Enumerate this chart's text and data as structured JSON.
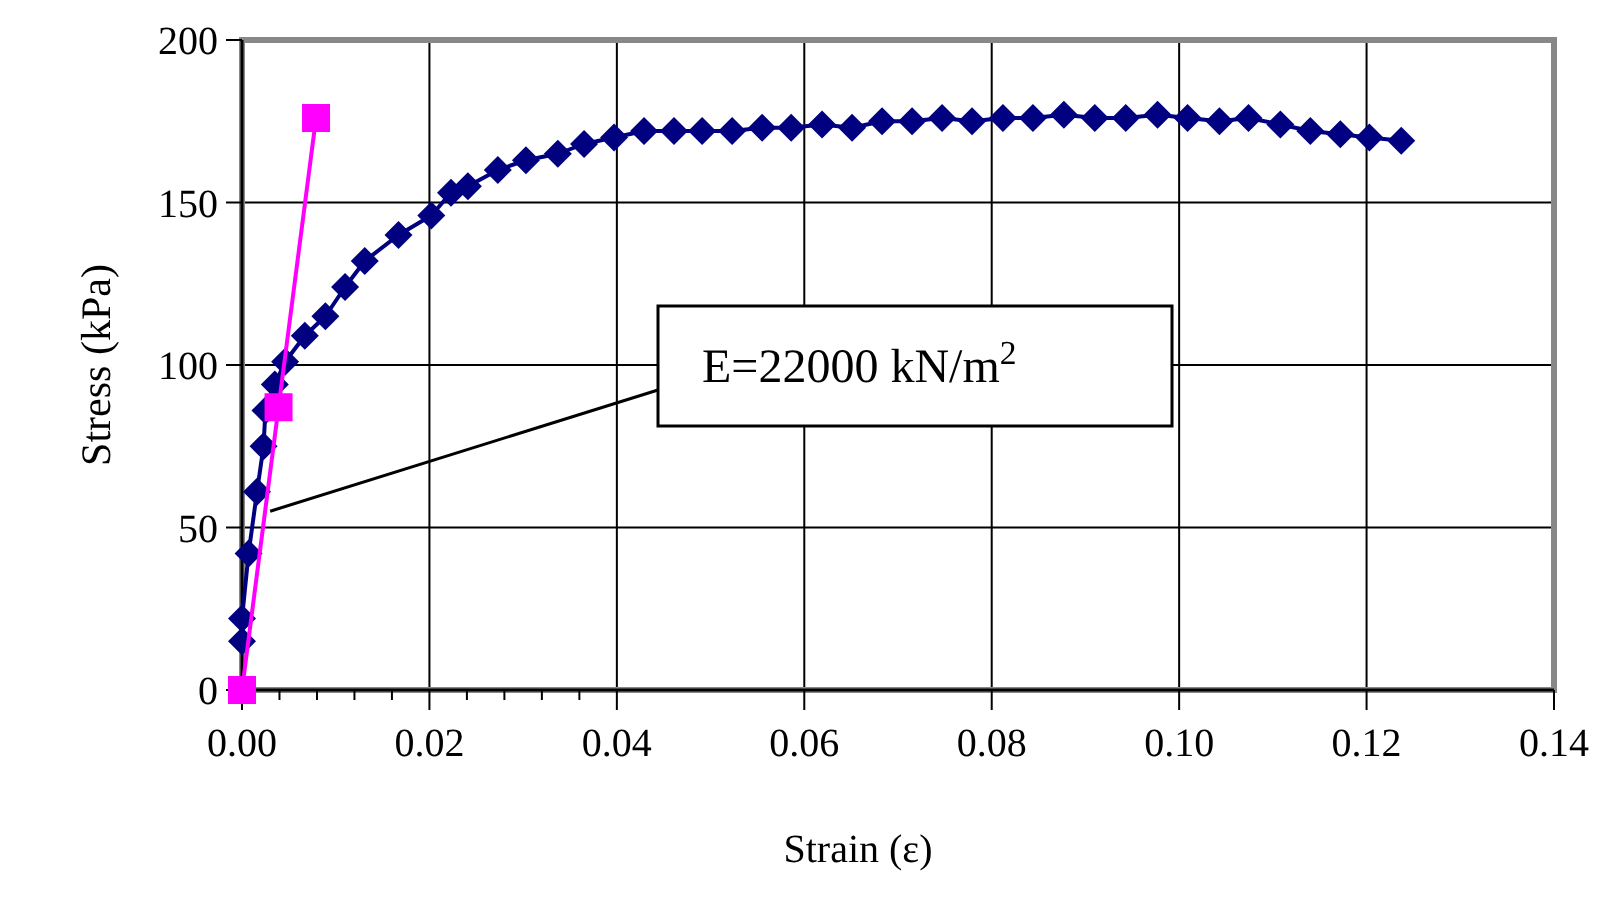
{
  "chart_data": {
    "type": "line",
    "xlabel": "Strain (ε)",
    "ylabel": "Stress (kPa)",
    "xlim": [
      0,
      0.14
    ],
    "ylim": [
      0,
      200
    ],
    "xticks": [
      {
        "value": 0,
        "label": "0.00"
      },
      {
        "value": 0.004,
        "label": null
      },
      {
        "value": 0.008,
        "label": null
      },
      {
        "value": 0.012,
        "label": null
      },
      {
        "value": 0.016,
        "label": null
      },
      {
        "value": 0.02,
        "label": "0.02"
      },
      {
        "value": 0.024,
        "label": null
      },
      {
        "value": 0.028,
        "label": null
      },
      {
        "value": 0.032,
        "label": null
      },
      {
        "value": 0.036,
        "label": null
      },
      {
        "value": 0.04,
        "label": "0.04"
      },
      {
        "value": 0.06,
        "label": "0.06"
      },
      {
        "value": 0.08,
        "label": "0.08"
      },
      {
        "value": 0.1,
        "label": "0.10"
      },
      {
        "value": 0.12,
        "label": "0.12"
      },
      {
        "value": 0.14,
        "label": "0.14"
      }
    ],
    "yticks": [
      0,
      50,
      100,
      150,
      200
    ],
    "grid": true,
    "line_style": "solid",
    "annotations": [
      {
        "text": "E=22000 kN/m$^{2}$",
        "x": 0.003,
        "y": 55
      }
    ],
    "series": [
      {
        "color": "#000080",
        "marker": "diamond",
        "x": [
          0,
          0,
          0.0007,
          0.0016,
          0.0023,
          0.0025,
          0.0035,
          0.0046,
          0.0067,
          0.0089,
          0.011,
          0.0131,
          0.0167,
          0.0202,
          0.0223,
          0.0241,
          0.0273,
          0.0303,
          0.0337,
          0.0365,
          0.0397,
          0.0429,
          0.0461,
          0.0491,
          0.0523,
          0.0555,
          0.0586,
          0.0619,
          0.0651,
          0.0683,
          0.0715,
          0.0747,
          0.0779,
          0.0812,
          0.0844,
          0.0877,
          0.091,
          0.0943,
          0.0977,
          0.1009,
          0.1043,
          0.1074,
          0.1108,
          0.114,
          0.1172,
          0.1203,
          0.1237
        ],
        "values": [
          15,
          22,
          42,
          61,
          75,
          86,
          94,
          101,
          109,
          115,
          124,
          132,
          140,
          146,
          153,
          155,
          160,
          163,
          165,
          168,
          170,
          172,
          172,
          172,
          172,
          173,
          173,
          174,
          173,
          175,
          175,
          176,
          175,
          176,
          176,
          177,
          176,
          176,
          177,
          176,
          175,
          176,
          174,
          172,
          171,
          170,
          169
        ]
      },
      {
        "color": "#ff00ff",
        "marker": "square",
        "x": [
          0,
          0.0039,
          0.0079
        ],
        "values": [
          0,
          87,
          176
        ]
      }
    ]
  }
}
